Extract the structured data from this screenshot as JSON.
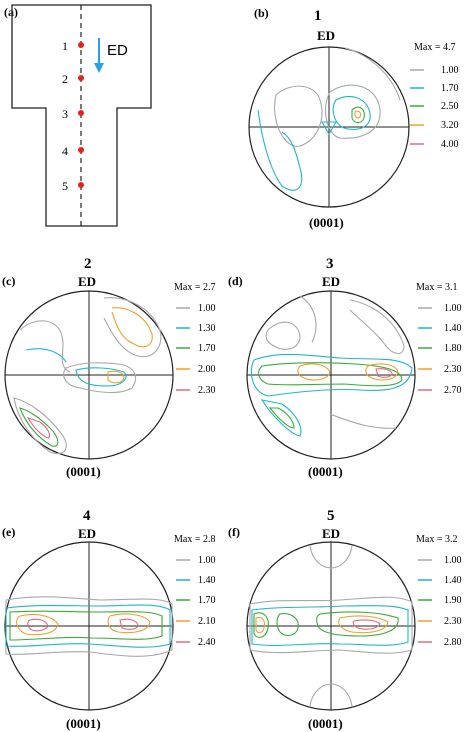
{
  "panel_a": {
    "label": "(a)",
    "direction_label": "ED",
    "points": [
      "1",
      "2",
      "3",
      "4",
      "5"
    ],
    "point_color": "#e2231a",
    "arrow_color": "#29a3e0"
  },
  "panels": [
    {
      "letter": "(b)",
      "number": "1",
      "ed": "ED",
      "plane": "(0001)",
      "max": "Max = 4.7",
      "legend": [
        {
          "value": "1.00",
          "color": "#a8a8a8"
        },
        {
          "value": "1.70",
          "color": "#1fb7c8"
        },
        {
          "value": "2.50",
          "color": "#3caa3c"
        },
        {
          "value": "3.20",
          "color": "#f0a030"
        },
        {
          "value": "4.00",
          "color": "#e06a80"
        }
      ]
    },
    {
      "letter": "(c)",
      "number": "2",
      "ed": "ED",
      "plane": "(0001)",
      "max": "Max = 2.7",
      "legend": [
        {
          "value": "1.00",
          "color": "#a8a8a8"
        },
        {
          "value": "1.30",
          "color": "#1fb7c8"
        },
        {
          "value": "1.70",
          "color": "#3caa3c"
        },
        {
          "value": "2.00",
          "color": "#f0a030"
        },
        {
          "value": "2.30",
          "color": "#e06a80"
        }
      ]
    },
    {
      "letter": "(d)",
      "number": "3",
      "ed": "ED",
      "plane": "(0001)",
      "max": "Max = 3.1",
      "legend": [
        {
          "value": "1.00",
          "color": "#a8a8a8"
        },
        {
          "value": "1.40",
          "color": "#1fb7c8"
        },
        {
          "value": "1.80",
          "color": "#3caa3c"
        },
        {
          "value": "2.30",
          "color": "#f0a030"
        },
        {
          "value": "2.70",
          "color": "#e06a80"
        }
      ]
    },
    {
      "letter": "(e)",
      "number": "4",
      "ed": "ED",
      "plane": "(0001)",
      "max": "Max = 2.8",
      "legend": [
        {
          "value": "1.00",
          "color": "#a8a8a8"
        },
        {
          "value": "1.40",
          "color": "#1fb7c8"
        },
        {
          "value": "1.70",
          "color": "#3caa3c"
        },
        {
          "value": "2.10",
          "color": "#f0a030"
        },
        {
          "value": "2.40",
          "color": "#e06a80"
        }
      ]
    },
    {
      "letter": "(f)",
      "number": "5",
      "ed": "ED",
      "plane": "(0001)",
      "max": "Max = 3.2",
      "legend": [
        {
          "value": "1.00",
          "color": "#a8a8a8"
        },
        {
          "value": "1.40",
          "color": "#1fb7c8"
        },
        {
          "value": "1.90",
          "color": "#3caa3c"
        },
        {
          "value": "2.30",
          "color": "#f0a030"
        },
        {
          "value": "2.80",
          "color": "#e06a80"
        }
      ]
    }
  ]
}
